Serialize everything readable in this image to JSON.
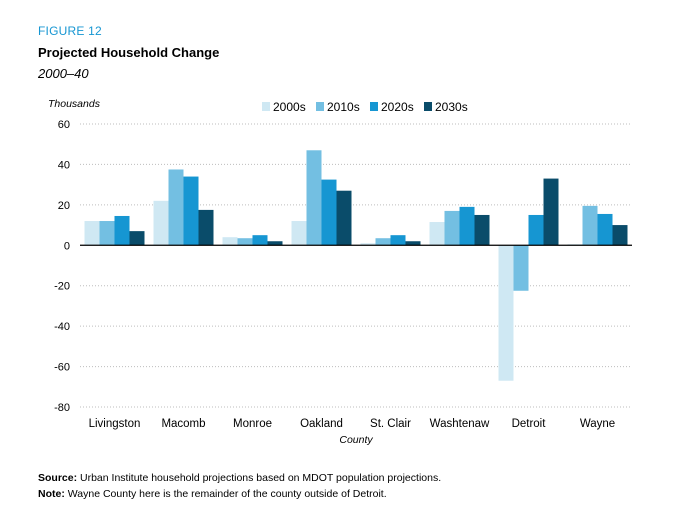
{
  "figure_label": "FIGURE 12",
  "title": "Projected Household Change",
  "subtitle": "2000–40",
  "source_label": "Source:",
  "source_text": "Urban Institute household projections based on MDOT population projections.",
  "note_label": "Note:",
  "note_text": "Wayne County here is the remainder of the county outside of Detroit.",
  "chart_data": {
    "type": "bar",
    "ylabel": "Thousands",
    "xlabel": "County",
    "ylim": [
      -80,
      60
    ],
    "yticks": [
      60,
      40,
      20,
      0,
      -20,
      -40,
      -60,
      -80
    ],
    "grid": "dotted horizontal",
    "legend_position": "top",
    "categories": [
      "Livingston",
      "Macomb",
      "Monroe",
      "Oakland",
      "St. Clair",
      "Washtenaw",
      "Detroit",
      "Wayne"
    ],
    "series": [
      {
        "name": "2000s",
        "color": "#cfe8f3",
        "values": [
          12,
          22,
          4,
          12,
          1,
          11.5,
          -67,
          0.5
        ]
      },
      {
        "name": "2010s",
        "color": "#73bfe2",
        "values": [
          12,
          37.5,
          3.5,
          47,
          3.5,
          17,
          -22.5,
          19.5
        ]
      },
      {
        "name": "2020s",
        "color": "#1696d2",
        "values": [
          14.5,
          34,
          5,
          32.5,
          5,
          19,
          15,
          15.5
        ]
      },
      {
        "name": "2030s",
        "color": "#0a4c6a",
        "values": [
          7,
          17.5,
          2,
          27,
          2,
          15,
          33,
          10
        ]
      }
    ]
  }
}
